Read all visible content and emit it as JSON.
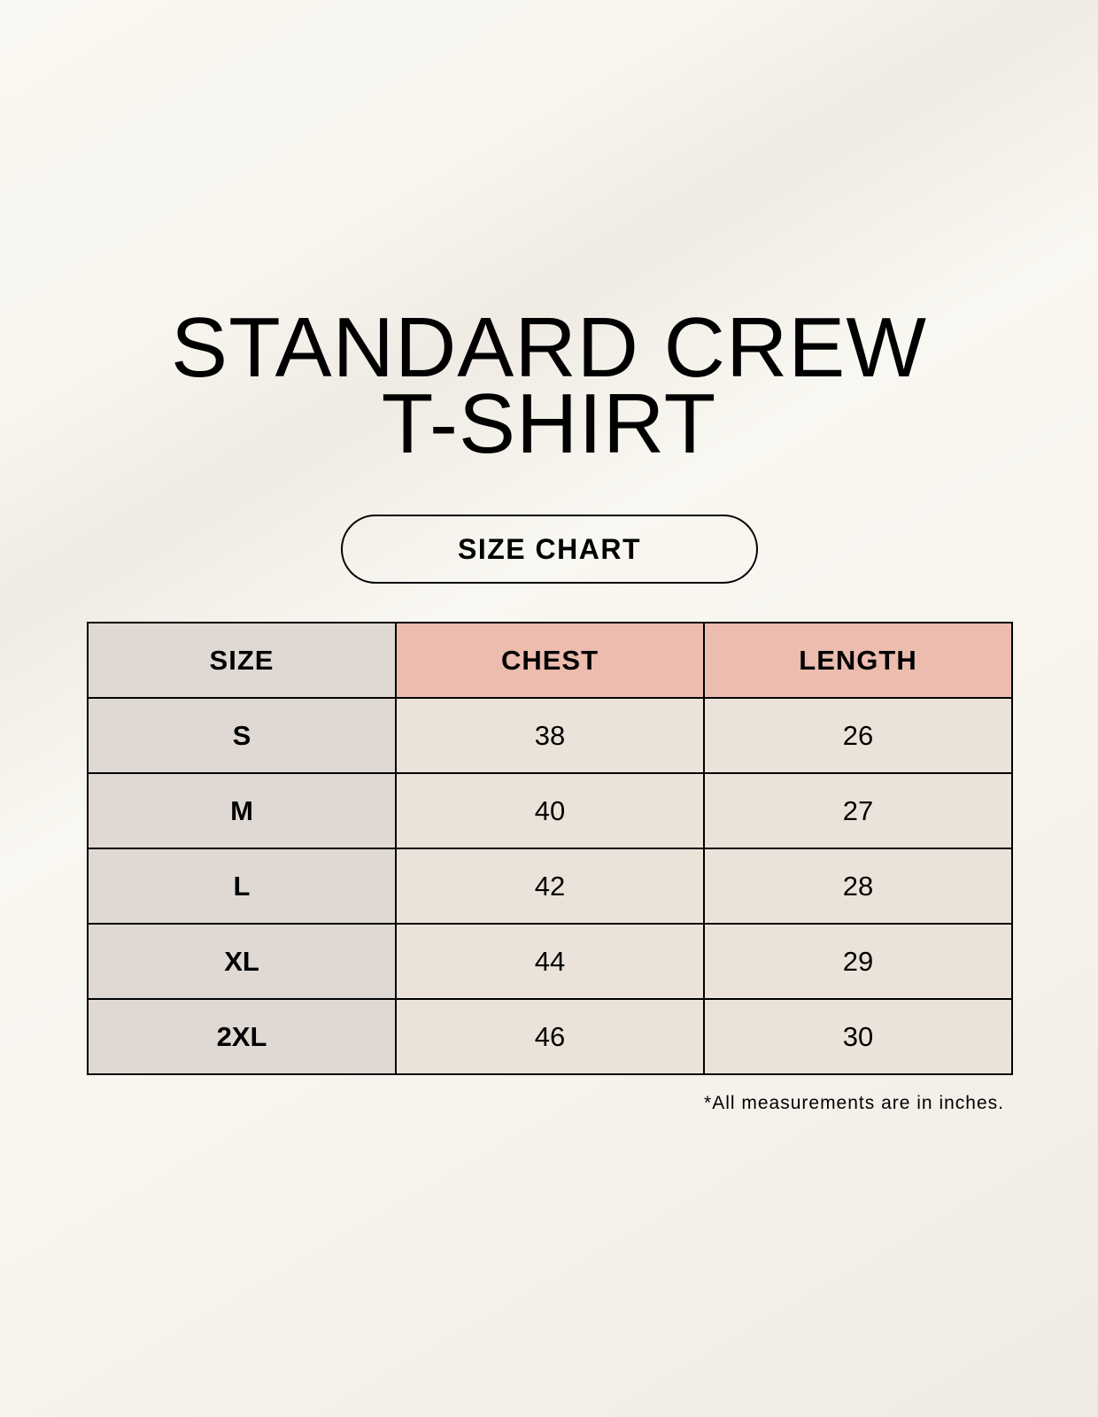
{
  "title_lines": [
    "STANDARD CREW",
    "T-SHIRT"
  ],
  "badge": "SIZE CHART",
  "table": {
    "headers": [
      "SIZE",
      "CHEST",
      "LENGTH"
    ],
    "rows": [
      [
        "S",
        "38",
        "26"
      ],
      [
        "M",
        "40",
        "27"
      ],
      [
        "L",
        "42",
        "28"
      ],
      [
        "XL",
        "44",
        "29"
      ],
      [
        "2XL",
        "46",
        "30"
      ]
    ]
  },
  "footnote": "*All measurements are in inches.",
  "colors": {
    "size_column": "#e0d9d3",
    "header_accent": "#ecbcaf",
    "value_cells": "#ebe3d9"
  }
}
